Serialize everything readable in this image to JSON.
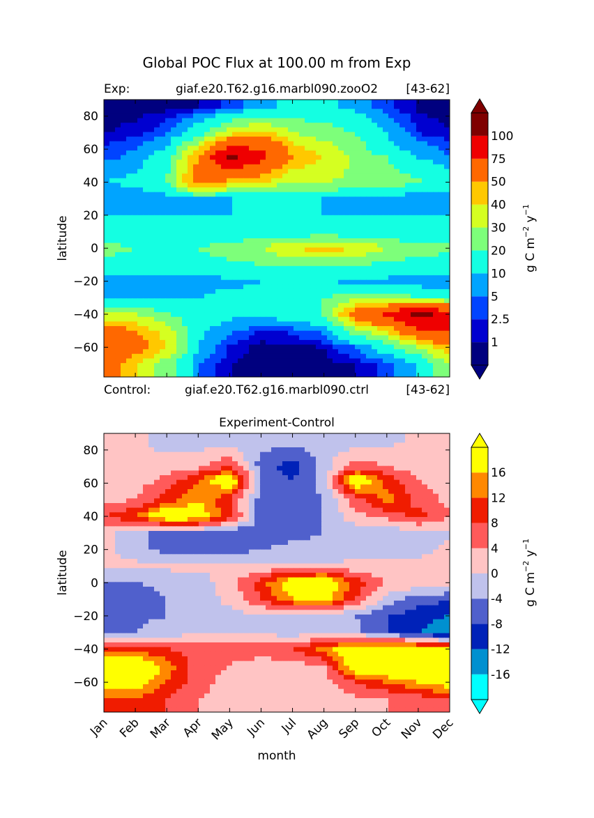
{
  "figure": {
    "title": "Global POC Flux at 100.00 m from Exp",
    "exp_label": "Exp:",
    "exp_case": "giaf.e20.T62.g16.marbl090.zooO2",
    "exp_years": "[43-62]",
    "ctrl_label": "Control:",
    "ctrl_case": "giaf.e20.T62.g16.marbl090.ctrl",
    "ctrl_years": "[43-62]",
    "diff_title": "Experiment-Control",
    "colorbar_label_main": "g C m",
    "colorbar_label_exp1": "−2",
    "colorbar_label_mid": "  y",
    "colorbar_label_exp2": "−1"
  },
  "chart_data": [
    {
      "type": "heatmap",
      "title": "",
      "xlabel": "",
      "ylabel": "latitude",
      "x": [
        "Jan",
        "Feb",
        "Mar",
        "Apr",
        "May",
        "Jun",
        "Jul",
        "Aug",
        "Sep",
        "Oct",
        "Nov",
        "Dec"
      ],
      "y_ticks": [
        80,
        60,
        40,
        20,
        0,
        -20,
        -40,
        -60
      ],
      "y_tick_labels": [
        "80",
        "60",
        "40",
        "20",
        "0",
        "−20",
        "−40",
        "−60"
      ],
      "ylim": [
        -78,
        90
      ],
      "colorbar_levels": [
        "1",
        "2.5",
        "5",
        "10",
        "20",
        "30",
        "40",
        "50",
        "75",
        "100"
      ],
      "colorbar_colors": [
        "#00007f",
        "#0000d0",
        "#0044ff",
        "#00a4ff",
        "#14ffe2",
        "#7dff7a",
        "#d5ff21",
        "#ffc800",
        "#ff6800",
        "#ef0000",
        "#7f0000"
      ],
      "values_by_latitude": [
        {
          "lat": 85,
          "values": [
            0.5,
            0.5,
            0.5,
            0.8,
            3,
            8,
            12,
            12,
            8,
            3,
            0.8,
            0.5
          ]
        },
        {
          "lat": 70,
          "values": [
            0.8,
            1.5,
            4,
            15,
            35,
            45,
            30,
            25,
            20,
            10,
            2,
            1
          ]
        },
        {
          "lat": 60,
          "values": [
            3,
            5,
            10,
            40,
            80,
            75,
            45,
            35,
            25,
            12,
            8,
            4
          ]
        },
        {
          "lat": 55,
          "values": [
            4,
            6,
            15,
            50,
            110,
            80,
            50,
            40,
            28,
            20,
            10,
            5
          ]
        },
        {
          "lat": 40,
          "values": [
            10,
            12,
            20,
            60,
            45,
            40,
            30,
            30,
            28,
            25,
            22,
            15
          ]
        },
        {
          "lat": 30,
          "values": [
            5,
            5,
            6,
            8,
            10,
            10,
            10,
            10,
            8,
            6,
            5,
            5
          ]
        },
        {
          "lat": 20,
          "values": [
            10,
            10,
            10,
            10,
            10,
            10,
            10,
            10,
            10,
            10,
            10,
            10
          ]
        },
        {
          "lat": 10,
          "values": [
            10,
            10,
            10,
            12,
            12,
            12,
            12,
            12,
            12,
            12,
            10,
            10
          ]
        },
        {
          "lat": 0,
          "values": [
            25,
            20,
            20,
            20,
            25,
            30,
            40,
            45,
            40,
            30,
            25,
            22
          ]
        },
        {
          "lat": -10,
          "values": [
            15,
            15,
            15,
            15,
            18,
            20,
            22,
            22,
            20,
            18,
            15,
            15
          ]
        },
        {
          "lat": -20,
          "values": [
            5,
            5,
            5,
            8,
            8,
            10,
            10,
            10,
            8,
            8,
            5,
            5
          ]
        },
        {
          "lat": -30,
          "values": [
            10,
            10,
            10,
            10,
            12,
            12,
            15,
            20,
            25,
            25,
            20,
            15
          ]
        },
        {
          "lat": -40,
          "values": [
            30,
            30,
            20,
            15,
            12,
            12,
            15,
            20,
            60,
            80,
            110,
            90
          ]
        },
        {
          "lat": -50,
          "values": [
            60,
            50,
            35,
            12,
            6,
            2,
            3,
            6,
            25,
            40,
            70,
            80
          ]
        },
        {
          "lat": -60,
          "values": [
            70,
            60,
            40,
            10,
            2,
            0.5,
            0.5,
            1,
            5,
            15,
            30,
            50
          ]
        },
        {
          "lat": -70,
          "values": [
            60,
            40,
            25,
            5,
            1,
            0.5,
            0.5,
            0.5,
            1,
            3,
            10,
            30
          ]
        }
      ]
    },
    {
      "type": "heatmap",
      "title": "Experiment-Control",
      "xlabel": "month",
      "ylabel": "latitude",
      "x": [
        "Jan",
        "Feb",
        "Mar",
        "Apr",
        "May",
        "Jun",
        "Jul",
        "Aug",
        "Sep",
        "Oct",
        "Nov",
        "Dec"
      ],
      "y_ticks": [
        80,
        60,
        40,
        20,
        0,
        -20,
        -40,
        -60
      ],
      "y_tick_labels": [
        "80",
        "60",
        "40",
        "20",
        "0",
        "−20",
        "−40",
        "−60"
      ],
      "ylim": [
        -78,
        90
      ],
      "colorbar_levels": [
        "-16",
        "-12",
        "-8",
        "-4",
        "0",
        "4",
        "8",
        "12",
        "16"
      ],
      "colorbar_colors": [
        "#00ffff",
        "#0090d0",
        "#0022b8",
        "#5060cc",
        "#c0c2ec",
        "#ffc4c4",
        "#ff5a5a",
        "#f01c00",
        "#ff8800",
        "#ffff00"
      ],
      "values_by_latitude": [
        {
          "lat": 85,
          "values": [
            1,
            1,
            -2,
            -2,
            -2,
            -2,
            -3,
            -2,
            -2,
            -1,
            1,
            1
          ]
        },
        {
          "lat": 70,
          "values": [
            1,
            1,
            2,
            3,
            8,
            -6,
            -10,
            -2,
            6,
            4,
            2,
            1
          ]
        },
        {
          "lat": 62,
          "values": [
            2,
            2,
            5,
            12,
            22,
            -4,
            -8,
            -2,
            22,
            10,
            4,
            2
          ]
        },
        {
          "lat": 50,
          "values": [
            2,
            4,
            10,
            16,
            8,
            -6,
            -8,
            -4,
            6,
            14,
            6,
            3
          ]
        },
        {
          "lat": 40,
          "values": [
            8,
            12,
            22,
            20,
            10,
            -6,
            -6,
            -4,
            3,
            5,
            10,
            4
          ]
        },
        {
          "lat": 30,
          "values": [
            2,
            -3,
            -6,
            -6,
            -8,
            -6,
            -5,
            -4,
            -3,
            -3,
            -2,
            -1
          ]
        },
        {
          "lat": 20,
          "values": [
            1,
            -2,
            -6,
            -6,
            -6,
            -4,
            -3,
            -3,
            -2,
            -2,
            -1,
            1
          ]
        },
        {
          "lat": 10,
          "values": [
            1,
            1,
            1,
            1,
            1,
            1,
            1,
            1,
            1,
            1,
            1,
            1
          ]
        },
        {
          "lat": 0,
          "values": [
            -4,
            -4,
            -3,
            -2,
            2,
            10,
            20,
            22,
            10,
            4,
            3,
            3
          ]
        },
        {
          "lat": -10,
          "values": [
            -6,
            -6,
            -4,
            -2,
            1,
            8,
            16,
            18,
            8,
            -2,
            -6,
            -8
          ]
        },
        {
          "lat": -20,
          "values": [
            -5,
            -5,
            -4,
            -2,
            -1,
            -1,
            -1,
            -2,
            -4,
            -8,
            -10,
            -12
          ]
        },
        {
          "lat": -30,
          "values": [
            -6,
            -4,
            -2,
            -1,
            -1,
            -1,
            -2,
            -2,
            -3,
            -8,
            -12,
            -16
          ]
        },
        {
          "lat": -40,
          "values": [
            10,
            10,
            8,
            6,
            6,
            6,
            8,
            14,
            20,
            22,
            20,
            16
          ]
        },
        {
          "lat": -50,
          "values": [
            22,
            24,
            14,
            6,
            4,
            2,
            2,
            4,
            22,
            24,
            26,
            26
          ]
        },
        {
          "lat": -60,
          "values": [
            22,
            20,
            12,
            6,
            2,
            1,
            1,
            2,
            8,
            12,
            16,
            20
          ]
        },
        {
          "lat": -70,
          "values": [
            10,
            12,
            8,
            4,
            2,
            1,
            1,
            1,
            3,
            4,
            6,
            8
          ]
        }
      ]
    }
  ]
}
